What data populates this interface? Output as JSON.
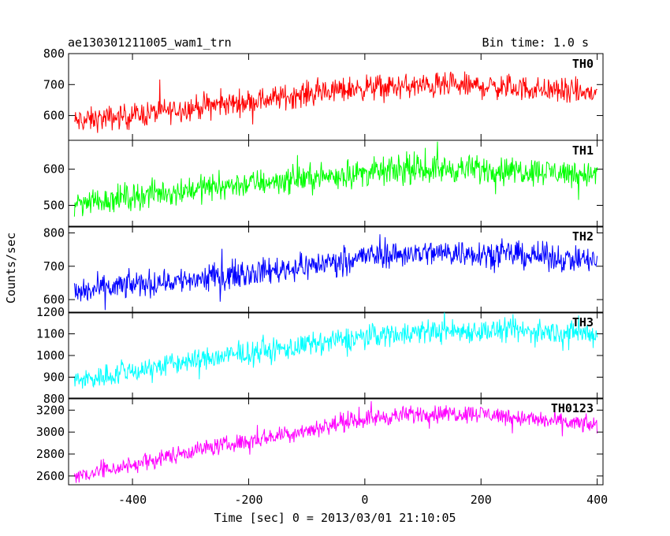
{
  "header": {
    "title_left": "ae130301211005_wam1_trn",
    "title_right": "Bin time: 1.0 s"
  },
  "chart_data": {
    "type": "line",
    "title": "ae130301211005_wam1_trn",
    "subtitle": "Bin time: 1.0 s",
    "xlabel": "Time [sec] 0 = 2013/03/01 21:10:05",
    "ylabel": "Counts/sec",
    "xlim": [
      -510,
      410
    ],
    "xticks": [
      -400,
      -200,
      0,
      200,
      400
    ],
    "bin_time_s": 1.0,
    "x_range": [
      -500,
      400
    ],
    "panels": [
      {
        "name": "TH0",
        "color": "#ff0000",
        "ylim": [
          520,
          800
        ],
        "yticks": [
          600,
          700,
          800
        ],
        "trend": [
          [
            -500,
            580
          ],
          [
            -400,
            600
          ],
          [
            -300,
            625
          ],
          [
            -200,
            645
          ],
          [
            -100,
            670
          ],
          [
            0,
            690
          ],
          [
            100,
            695
          ],
          [
            200,
            695
          ],
          [
            300,
            685
          ],
          [
            400,
            670
          ]
        ],
        "noise_amp": 28,
        "spike_amp": 55
      },
      {
        "name": "TH1",
        "color": "#00ff00",
        "ylim": [
          440,
          680
        ],
        "yticks": [
          500,
          600
        ],
        "trend": [
          [
            -500,
            505
          ],
          [
            -400,
            525
          ],
          [
            -300,
            545
          ],
          [
            -200,
            560
          ],
          [
            -100,
            575
          ],
          [
            0,
            590
          ],
          [
            100,
            600
          ],
          [
            200,
            600
          ],
          [
            300,
            595
          ],
          [
            400,
            585
          ]
        ],
        "noise_amp": 26,
        "spike_amp": 55
      },
      {
        "name": "TH2",
        "color": "#0000ff",
        "ylim": [
          560,
          820
        ],
        "yticks": [
          600,
          700,
          800
        ],
        "trend": [
          [
            -500,
            620
          ],
          [
            -400,
            645
          ],
          [
            -300,
            660
          ],
          [
            -200,
            680
          ],
          [
            -100,
            700
          ],
          [
            0,
            730
          ],
          [
            100,
            740
          ],
          [
            200,
            740
          ],
          [
            300,
            730
          ],
          [
            400,
            715
          ]
        ],
        "noise_amp": 28,
        "spike_amp": 55
      },
      {
        "name": "TH3",
        "color": "#00ffff",
        "ylim": [
          800,
          1200
        ],
        "yticks": [
          800,
          900,
          1000,
          1100,
          1200
        ],
        "trend": [
          [
            -500,
            880
          ],
          [
            -400,
            930
          ],
          [
            -300,
            975
          ],
          [
            -200,
            1010
          ],
          [
            -100,
            1045
          ],
          [
            0,
            1090
          ],
          [
            100,
            1110
          ],
          [
            200,
            1115
          ],
          [
            300,
            1110
          ],
          [
            400,
            1100
          ]
        ],
        "noise_amp": 38,
        "spike_amp": 75
      },
      {
        "name": "TH0123",
        "color": "#ff00ff",
        "ylim": [
          2520,
          3310
        ],
        "yticks": [
          2600,
          2800,
          3000,
          3200
        ],
        "trend": [
          [
            -500,
            2600
          ],
          [
            -400,
            2700
          ],
          [
            -300,
            2830
          ],
          [
            -200,
            2920
          ],
          [
            -100,
            3020
          ],
          [
            0,
            3120
          ],
          [
            100,
            3170
          ],
          [
            200,
            3170
          ],
          [
            300,
            3110
          ],
          [
            400,
            3060
          ]
        ],
        "noise_amp": 55,
        "spike_amp": 110
      }
    ]
  }
}
